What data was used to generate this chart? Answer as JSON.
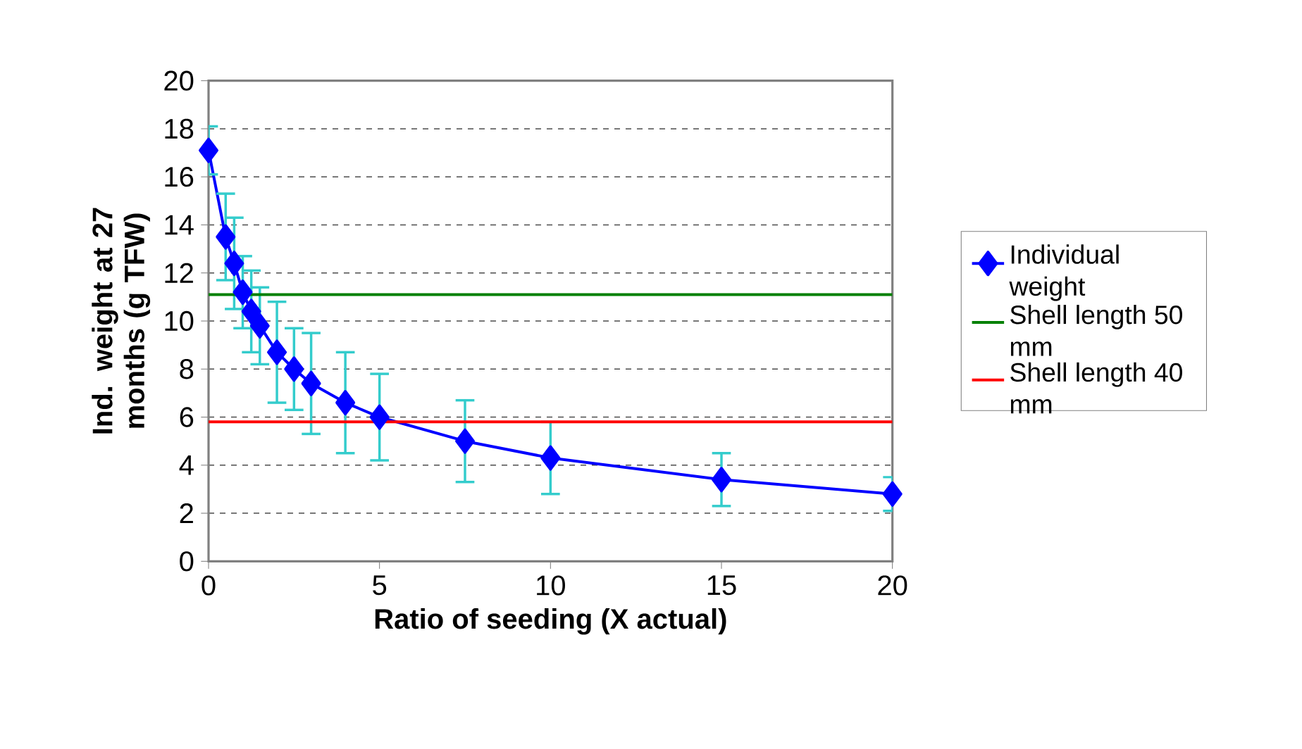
{
  "chart_data": {
    "type": "line",
    "xlabel": "Ratio of seeding (X actual)",
    "ylabel": "Ind. weight at 27 months (g TFW)",
    "x": [
      0,
      0.5,
      0.75,
      1,
      1.25,
      1.5,
      2,
      2.5,
      3,
      4,
      5,
      7.5,
      10,
      15,
      20
    ],
    "series": [
      {
        "name": "Individual weight",
        "color": "#0000ff",
        "values": [
          17.1,
          13.5,
          12.4,
          11.2,
          10.4,
          9.8,
          8.7,
          8.0,
          7.4,
          6.6,
          6.0,
          5.0,
          4.3,
          3.4,
          2.8
        ],
        "errors": [
          1.0,
          1.8,
          1.9,
          1.5,
          1.7,
          1.6,
          2.1,
          1.7,
          2.1,
          2.1,
          1.8,
          1.7,
          1.5,
          1.1,
          0.7
        ]
      }
    ],
    "ref_lines": [
      {
        "axis": "y",
        "value": 11.1,
        "label": "Shell length 50 mm",
        "color": "#008000"
      },
      {
        "axis": "y",
        "value": 5.8,
        "label": "Shell length 40 mm",
        "color": "#ff0000"
      }
    ],
    "xlim": [
      0,
      20
    ],
    "ylim": [
      0,
      20
    ],
    "xticks": [
      0,
      5,
      10,
      15,
      20
    ],
    "yticks": [
      0,
      2,
      4,
      6,
      8,
      10,
      12,
      14,
      16,
      18,
      20
    ],
    "grid": "y",
    "legend": "right",
    "marker": "diamond",
    "line_style": "solid"
  }
}
